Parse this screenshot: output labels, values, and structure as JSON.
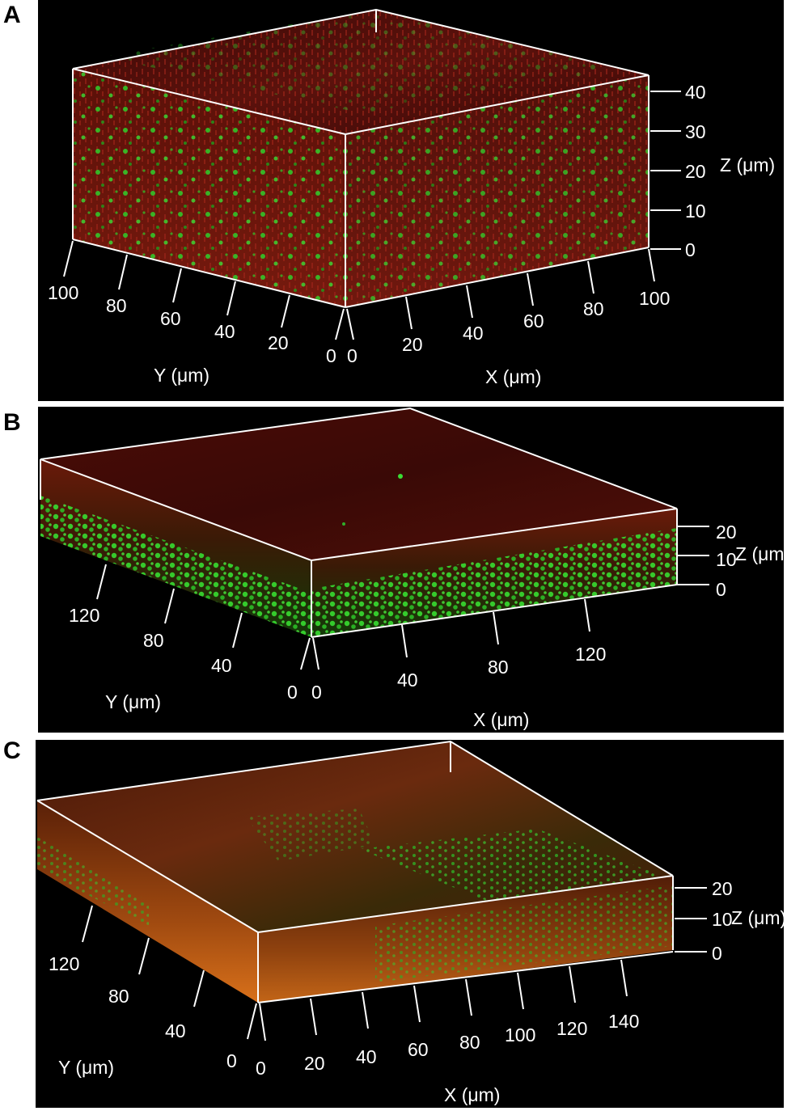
{
  "panels": [
    {
      "label": "A",
      "y_axis": {
        "title": "Y (μm)",
        "ticks": [
          "100",
          "80",
          "60",
          "40",
          "20",
          "0"
        ]
      },
      "x_axis": {
        "title": "X (μm)",
        "ticks": [
          "0",
          "20",
          "40",
          "60",
          "80",
          "100"
        ]
      },
      "z_axis": {
        "title": "Z (μm)",
        "ticks": [
          "40",
          "30",
          "20",
          "10",
          "0"
        ]
      }
    },
    {
      "label": "B",
      "y_axis": {
        "title": "Y (μm)",
        "ticks": [
          "120",
          "80",
          "40",
          "0"
        ]
      },
      "x_axis": {
        "title": "X (μm)",
        "ticks": [
          "0",
          "40",
          "80",
          "120"
        ]
      },
      "z_axis": {
        "title": "Z (μm)",
        "ticks": [
          "20",
          "10",
          "0"
        ]
      }
    },
    {
      "label": "C",
      "y_axis": {
        "title": "Y (μm)",
        "ticks": [
          "120",
          "80",
          "40",
          "0"
        ]
      },
      "x_axis": {
        "title": "X (μm)",
        "ticks": [
          "0",
          "20",
          "40",
          "60",
          "80",
          "100",
          "120",
          "140"
        ]
      },
      "z_axis": {
        "title": "Z (μm)",
        "ticks": [
          "20",
          "10",
          "0"
        ]
      }
    }
  ],
  "colors": {
    "background": "#000000",
    "frame": "#ffffff",
    "red_stain": "#8a1a10",
    "green_stain": "#2fd22a",
    "orange_stain": "#c8601a"
  }
}
